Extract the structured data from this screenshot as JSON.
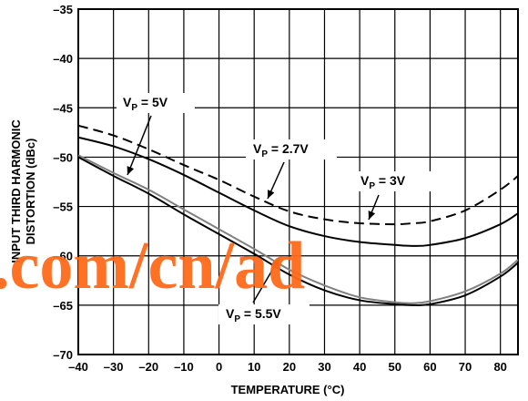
{
  "chart_data": {
    "type": "line",
    "title": "",
    "xlabel": "TEMPERATURE (°C)",
    "ylabel_lines": [
      "INPUT THIRD HARMONIC",
      "DISTORTION (dBc)"
    ],
    "xlim": [
      -40,
      85
    ],
    "ylim": [
      -70,
      -35
    ],
    "x_ticks": [
      -40,
      -30,
      -20,
      -10,
      0,
      10,
      20,
      30,
      40,
      50,
      60,
      70,
      80
    ],
    "y_ticks": [
      -35,
      -40,
      -45,
      -50,
      -55,
      -60,
      -65,
      -70
    ],
    "grid": true,
    "series": [
      {
        "name": "VP = 5V",
        "style": "solid",
        "color": "#000000",
        "x": [
          -40,
          -30,
          -20,
          -10,
          0,
          10,
          20,
          30,
          40,
          50,
          55,
          60,
          70,
          80,
          85
        ],
        "y": [
          -48.0,
          -48.9,
          -50.2,
          -51.8,
          -53.6,
          -55.4,
          -57.0,
          -58.0,
          -58.6,
          -58.9,
          -59.0,
          -58.9,
          -58.2,
          -56.8,
          -55.7
        ]
      },
      {
        "name": "VP = 2.7V",
        "style": "dashed",
        "color": "#000000",
        "x": [
          -40,
          -30,
          -20,
          -10,
          0,
          10,
          20,
          30,
          40,
          50,
          55,
          60,
          70,
          80,
          85
        ],
        "y": [
          -46.8,
          -47.8,
          -49.2,
          -50.8,
          -52.3,
          -54.0,
          -55.5,
          -56.3,
          -56.7,
          -56.8,
          -56.7,
          -56.5,
          -55.4,
          -53.3,
          -51.9
        ]
      },
      {
        "name": "VP = 3V",
        "style": "solid",
        "color": "#808080",
        "x": [
          -40,
          -30,
          -20,
          -10,
          0,
          10,
          20,
          30,
          40,
          50,
          55,
          60,
          70,
          80,
          85
        ],
        "y": [
          -49.8,
          -51.6,
          -53.3,
          -55.3,
          -57.3,
          -59.3,
          -61.4,
          -63.0,
          -64.2,
          -64.7,
          -64.8,
          -64.6,
          -63.6,
          -61.8,
          -60.4
        ]
      },
      {
        "name": "VP = 5.5V",
        "style": "solid",
        "color": "#000000",
        "x": [
          -40,
          -30,
          -20,
          -10,
          0,
          10,
          20,
          30,
          40,
          50,
          55,
          60,
          70,
          80,
          85
        ],
        "y": [
          -50.0,
          -51.9,
          -53.7,
          -55.8,
          -57.8,
          -59.8,
          -61.9,
          -63.5,
          -64.5,
          -64.9,
          -65.0,
          -64.9,
          -64.0,
          -62.1,
          -60.7
        ]
      }
    ],
    "annotations": [
      {
        "label_main": "V",
        "label_sub": "P",
        "label_rest": " = 5V",
        "target_series": 0
      },
      {
        "label_main": "V",
        "label_sub": "P",
        "label_rest": " = 2.7V",
        "target_series": 1
      },
      {
        "label_main": "V",
        "label_sub": "P",
        "label_rest": " = 3V",
        "target_series": 2
      },
      {
        "label_main": "V",
        "label_sub": "P",
        "label_rest": " = 5.5V",
        "target_series": 3
      }
    ]
  },
  "watermark": ".com/cn/ad"
}
